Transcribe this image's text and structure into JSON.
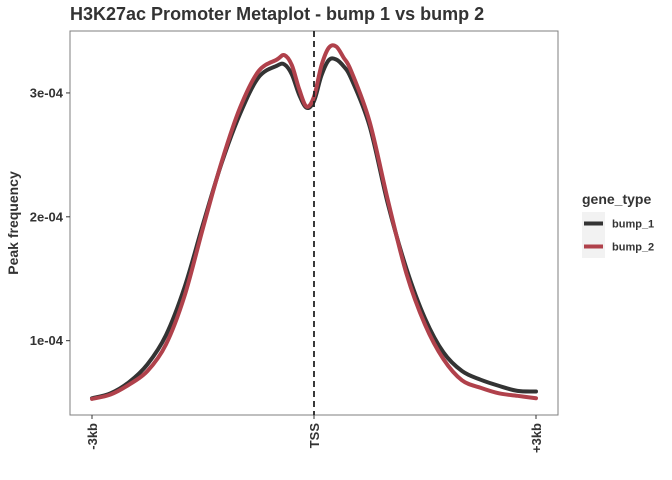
{
  "chart_data": {
    "type": "line",
    "title": "H3K27ac Promoter Metaplot - bump 1 vs bump 2",
    "xlabel": "",
    "ylabel": "Peak frequency",
    "x_ticks": [
      {
        "value": -3000,
        "label": "-3kb"
      },
      {
        "value": 0,
        "label": "TSS"
      },
      {
        "value": 3000,
        "label": "+3kb"
      }
    ],
    "y_ticks": [
      {
        "value": 0.0001,
        "label": "1e-04"
      },
      {
        "value": 0.0002,
        "label": "2e-04"
      },
      {
        "value": 0.0003,
        "label": "3e-04"
      }
    ],
    "xlim": [
      -3000,
      3000
    ],
    "ylim": [
      4e-05,
      0.00035
    ],
    "grid": false,
    "vline": {
      "x": 0,
      "style": "dashed"
    },
    "legend": {
      "title": "gene_type",
      "position": "right"
    },
    "x": [
      -3000,
      -2750,
      -2500,
      -2250,
      -2000,
      -1750,
      -1500,
      -1250,
      -1000,
      -750,
      -500,
      -400,
      -300,
      -200,
      -100,
      0,
      100,
      200,
      300,
      400,
      500,
      750,
      1000,
      1250,
      1500,
      1750,
      2000,
      2250,
      2500,
      2750,
      3000
    ],
    "series": [
      {
        "name": "bump_1",
        "color": "#333333",
        "values": [
          5.35e-05,
          5.75e-05,
          6.65e-05,
          8.1e-05,
          0.0001045,
          0.000143,
          0.000194,
          0.000243,
          0.000283,
          0.0003125,
          0.000322,
          0.000323,
          0.000315,
          0.0002985,
          0.000288,
          0.0002935,
          0.000314,
          0.0003265,
          0.000327,
          0.0003215,
          0.000312,
          0.0002735,
          0.00021,
          0.000158,
          0.000118,
          9.05e-05,
          7.55e-05,
          6.85e-05,
          6.35e-05,
          5.95e-05,
          5.9e-05
        ]
      },
      {
        "name": "bump_2",
        "color": "#b0414b",
        "values": [
          5.3e-05,
          5.65e-05,
          6.45e-05,
          7.55e-05,
          9.7e-05,
          0.000136,
          0.000191,
          0.000244,
          0.000288,
          0.0003175,
          0.000327,
          0.0003305,
          0.0003225,
          0.000303,
          0.000289,
          0.000297,
          0.000322,
          0.0003365,
          0.0003375,
          0.0003285,
          0.000318,
          0.000277,
          0.000213,
          0.000154,
          0.000113,
          8.5e-05,
          6.8e-05,
          6.2e-05,
          5.75e-05,
          5.55e-05,
          5.35e-05
        ]
      }
    ]
  }
}
